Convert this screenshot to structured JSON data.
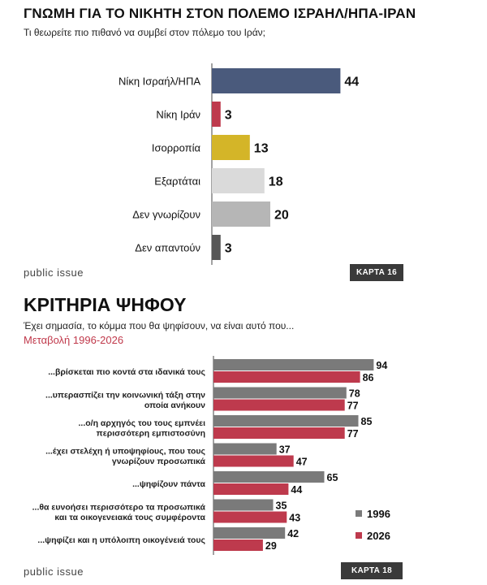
{
  "card1": {
    "title": "ΓΝΩΜΗ ΓΙΑ ΤΟ ΝΙΚΗΤΗ ΣΤΟΝ ΠΟΛΕΜΟ ΙΣΡΑΗΛ/ΗΠΑ-ΙΡΑΝ",
    "subtitle": "Τι θεωρείτε πιο πιθανό να συμβεί στον πόλεμο του Ιράν;",
    "brand": "public issue",
    "tag": "ΚΑΡΤΑ 16"
  },
  "card2": {
    "title": "ΚΡΙΤΗΡΙΑ ΨΗΦΟΥ",
    "subtitle": "Έχει σημασία, το κόμμα που θα ψηφίσουν, να είναι αυτό που...",
    "subtitle2": "Μεταβολή 1996-2026",
    "brand": "public issue",
    "tag": "ΚΑΡΤΑ 18"
  },
  "chart_data": [
    {
      "type": "bar",
      "orientation": "horizontal",
      "title": "ΓΝΩΜΗ ΓΙΑ ΤΟ ΝΙΚΗΤΗ ΣΤΟΝ ΠΟΛΕΜΟ ΙΣΡΑΗΛ/ΗΠΑ-ΙΡΑΝ",
      "categories": [
        "Νίκη Ισραήλ/ΗΠΑ",
        "Νίκη Ιράν",
        "Ισορροπία",
        "Εξαρτάται",
        "Δεν γνωρίζουν",
        "Δεν απαντούν"
      ],
      "values": [
        44,
        3,
        13,
        18,
        20,
        3
      ],
      "colors": [
        "#4a5a7c",
        "#be3a4d",
        "#d4b528",
        "#dadada",
        "#b6b6b6",
        "#575757"
      ],
      "xlim": [
        0,
        100
      ],
      "grid": false
    },
    {
      "type": "bar",
      "orientation": "horizontal",
      "title": "ΚΡΙΤΗΡΙΑ ΨΗΦΟΥ",
      "categories": [
        [
          "...βρίσκεται πιο κοντά στα ιδανικά τους"
        ],
        [
          "...υπερασπίζει την κοινωνική τάξη στην",
          "οποία ανήκουν"
        ],
        [
          "...ο/η αρχηγός του τους εμπνέει",
          "περισσότερη εμπιστοσύνη"
        ],
        [
          "...έχει στελέχη ή υποψηφίους, που τους",
          "γνωρίζουν προσωπικά"
        ],
        [
          "...ψηφίζουν πάντα"
        ],
        [
          "...θα ευνοήσει περισσότερο τα προσωπικά",
          "και τα οικογενειακά τους συμφέροντα"
        ],
        [
          "...ψηφίζει και η υπόλοιπη οικογένειά τους"
        ]
      ],
      "series": [
        {
          "name": "1996",
          "values": [
            94,
            78,
            85,
            37,
            65,
            35,
            42
          ],
          "color": "#7a7a7a"
        },
        {
          "name": "2026",
          "values": [
            86,
            77,
            77,
            47,
            44,
            43,
            29
          ],
          "color": "#be3a4d"
        }
      ],
      "xlim": [
        0,
        100
      ],
      "legend": "bottom-right",
      "grid": false
    }
  ]
}
